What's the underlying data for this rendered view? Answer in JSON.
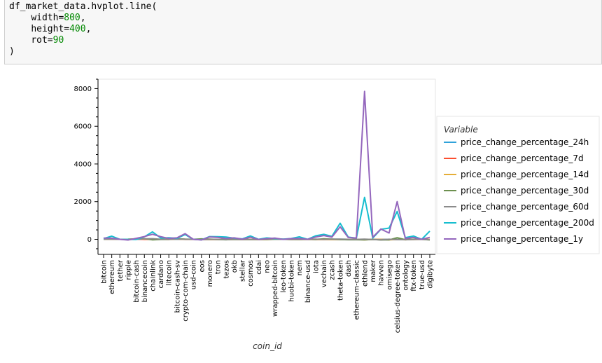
{
  "code": {
    "line1": "df_market_data.hvplot.line(",
    "width_kw": "width",
    "width_val": "800",
    "height_kw": "height",
    "height_val": "400",
    "rot_kw": "rot",
    "rot_val": "90",
    "close": ")"
  },
  "chart_data": {
    "type": "line",
    "xlabel": "coin_id",
    "ylabel": "",
    "ylim": [
      -800,
      8500
    ],
    "yticks": [
      0,
      2000,
      4000,
      6000,
      8000
    ],
    "legend_title": "Variable",
    "legend_position": "right",
    "grid": false,
    "categories": [
      "bitcoin",
      "ethereum",
      "tether",
      "ripple",
      "bitcoin-cash",
      "binancecoin",
      "chainlink",
      "cardano",
      "litecoin",
      "bitcoin-cash-sv",
      "crypto-com-chain",
      "usd-coin",
      "eos",
      "monero",
      "tron",
      "tezos",
      "okb",
      "stellar",
      "cosmos",
      "cdai",
      "neo",
      "wrapped-bitcoin",
      "leo-token",
      "huobi-token",
      "nem",
      "binance-usd",
      "iota",
      "vechain",
      "zcash",
      "theta-token",
      "dash",
      "ethereum-classic",
      "ethlend",
      "maker",
      "havven",
      "omisego",
      "celsius-degree-token",
      "ontology",
      "ftx-token",
      "true-usd",
      "digibyte"
    ],
    "series": [
      {
        "name": "price_change_percentage_24h",
        "color": "#30a2da",
        "values": [
          1.08,
          0.25,
          0.02,
          -0.63,
          1.96,
          -0.32,
          -0.02,
          -0.44,
          -0.41,
          0.71,
          0.9,
          0.04,
          -0.58,
          0.06,
          -0.84,
          -1.24,
          -0.32,
          -0.13,
          -0.12,
          -0.53,
          0.56,
          0.08,
          0.3,
          -0.05,
          -0.48,
          -0.6,
          1.23,
          3.07,
          2.94,
          2.34,
          -0.28,
          -0.37,
          -7.8,
          -0.3,
          -2.04,
          -3.14,
          -0.73,
          0.28,
          -0.05,
          0.01,
          -0.6
        ]
      },
      {
        "name": "price_change_percentage_7d",
        "color": "#fc4f30",
        "values": [
          7.46,
          10.2,
          0.0,
          -4.27,
          14.75,
          -4.62,
          -2.22,
          -2.04,
          -3.63,
          17.69,
          -4.59,
          0.01,
          -7.73,
          -10.95,
          -7.55,
          -4.71,
          -2.1,
          -8.37,
          -5.28,
          -3.38,
          -5.49,
          7.84,
          2.04,
          -5.3,
          -2.93,
          0.0,
          -6.2,
          -5.97,
          -11.43,
          -10.15,
          -6.72,
          -4.56,
          -15.28,
          -2.18,
          -13.2,
          -17.07,
          -18.28,
          -2.25,
          -5.37,
          -0.02,
          -4.15
        ]
      },
      {
        "name": "price_change_percentage_14d",
        "color": "#e5ae38",
        "values": [
          3.16,
          13.0,
          -0.07,
          3.39,
          22.03,
          18.06,
          -2.81,
          0.2,
          4.23,
          19.96,
          -1.39,
          0.08,
          -8.72,
          -14.43,
          -6.14,
          -11.75,
          -5.95,
          -8.77,
          -13.35,
          -7.06,
          -14.5,
          4.79,
          2.67,
          -8.55,
          -8.98,
          -0.19,
          -13.11,
          -12.94,
          -14.44,
          -11.54,
          -13.7,
          -8.91,
          -25.6,
          -8.3,
          -4.79,
          -26.77,
          -6.6,
          -23.25,
          -8.17,
          -0.05,
          -7.91
        ]
      },
      {
        "name": "price_change_percentage_30d",
        "color": "#6d904f",
        "values": [
          7.2,
          26.9,
          0.1,
          3.7,
          17.7,
          37.8,
          -25.5,
          -12.6,
          -3.9,
          33.6,
          8.9,
          -0.2,
          20.8,
          6.4,
          -8.1,
          -20.9,
          -5.4,
          -8.2,
          -12.6,
          -6.5,
          -4.8,
          0.7,
          -0.4,
          -12.9,
          -13.0,
          0.0,
          -10.1,
          30.8,
          5.6,
          -14.8,
          -23.6,
          -21.5,
          -30.2,
          -13.2,
          -35.2,
          -28.2,
          86.4,
          -21.4,
          5.1,
          0.0,
          -33.6
        ]
      },
      {
        "name": "price_change_percentage_60d",
        "color": "#8b8b8b",
        "values": [
          6.1,
          5.7,
          -0.1,
          -9.9,
          6.6,
          26.6,
          34.1,
          2.6,
          11.5,
          16.4,
          2.0,
          0.2,
          -18.4,
          -2.1,
          -0.8,
          -8.9,
          -4.6,
          0.5,
          -7.0,
          -0.6,
          14.3,
          6.0,
          4.7,
          -2.6,
          11.5,
          0.1,
          6.0,
          -2.6,
          9.8,
          6.4,
          0.4,
          -5.1,
          6.0,
          -10.7,
          -28.6,
          1.9,
          -18.7,
          -17.3,
          -13.2,
          0.0,
          -17.6
        ]
      },
      {
        "name": "price_change_percentage_200d",
        "color": "#17becf",
        "values": [
          41.5,
          168.5,
          0.0,
          -4.8,
          -7.3,
          137.5,
          394.4,
          68.9,
          84.0,
          52.0,
          252.2,
          -0.3,
          -30.5,
          143.7,
          136.7,
          121.1,
          59.9,
          23.6,
          179.0,
          -1.1,
          72.6,
          40.7,
          8.1,
          41.2,
          130.9,
          0.0,
          185.3,
          262.4,
          161.2,
          856.6,
          115.2,
          61.6,
          2227.9,
          68.6,
          532.4,
          594.7,
          1480.8,
          87.5,
          176.5,
          0.0,
          433.5
        ]
      },
      {
        "name": "price_change_percentage_1y",
        "color": "#9467bd",
        "values": [
          66.3,
          60.9,
          0.3,
          -37.7,
          50.3,
          143.5,
          266.2,
          142.9,
          45.5,
          76.9,
          302.3,
          0.0,
          -32.9,
          125.2,
          104.0,
          44.5,
          79.5,
          2.2,
          111.0,
          -8.6,
          33.1,
          65.9,
          -4.8,
          35.8,
          40.1,
          0.1,
          117.3,
          199.1,
          114.3,
          664.4,
          96.3,
          66.5,
          7852.1,
          112.3,
          545.8,
          336.2,
          2000.2,
          45.3,
          96.0,
          0.0,
          102.8
        ]
      }
    ]
  }
}
